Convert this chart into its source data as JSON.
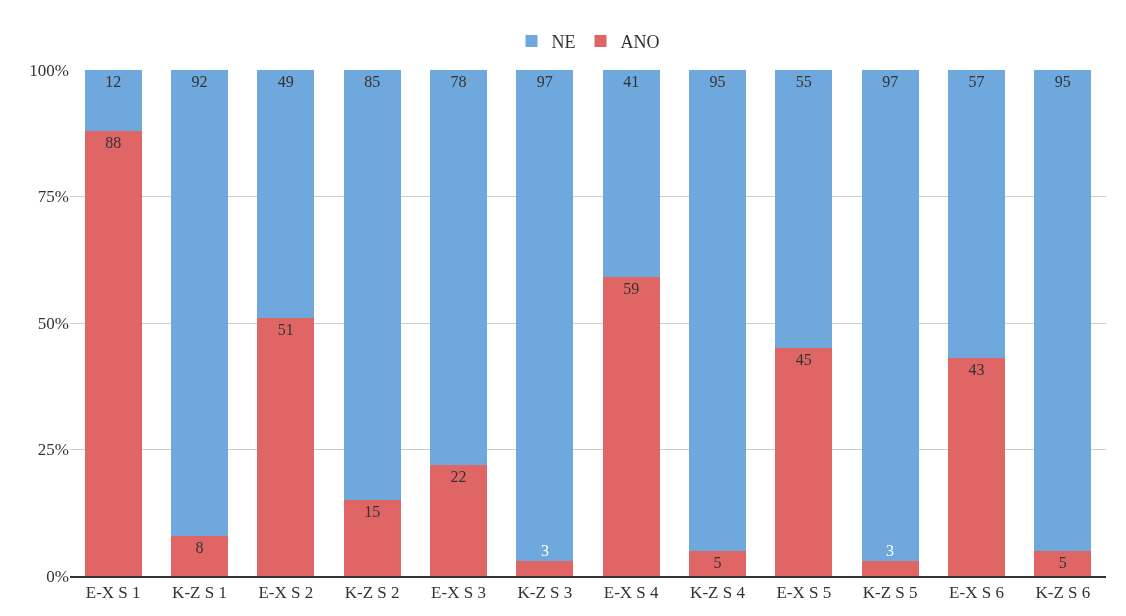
{
  "chart_data": {
    "type": "bar",
    "stacked": true,
    "categories": [
      "E-X S 1",
      "K-Z S 1",
      "E-X S 2",
      "K-Z S 2",
      "E-X S 3",
      "K-Z S 3",
      "E-X S 4",
      "K-Z S 4",
      "E-X S 5",
      "K-Z S 5",
      "E-X S 6",
      "K-Z S 6"
    ],
    "series": [
      {
        "name": "ANO",
        "color": "#e06666",
        "values": [
          88,
          8,
          51,
          15,
          22,
          3,
          59,
          5,
          45,
          3,
          43,
          5
        ]
      },
      {
        "name": "NE",
        "color": "#6fa8dc",
        "values": [
          12,
          92,
          49,
          85,
          78,
          97,
          41,
          95,
          55,
          97,
          57,
          95
        ]
      }
    ],
    "ylim": [
      0,
      100
    ],
    "yticks": [
      {
        "value": 0,
        "label": "0%"
      },
      {
        "value": 25,
        "label": "25%"
      },
      {
        "value": 50,
        "label": "50%"
      },
      {
        "value": 75,
        "label": "75%"
      },
      {
        "value": 100,
        "label": "100%"
      }
    ],
    "grid": "y",
    "legend": "top",
    "data_labels": true
  }
}
